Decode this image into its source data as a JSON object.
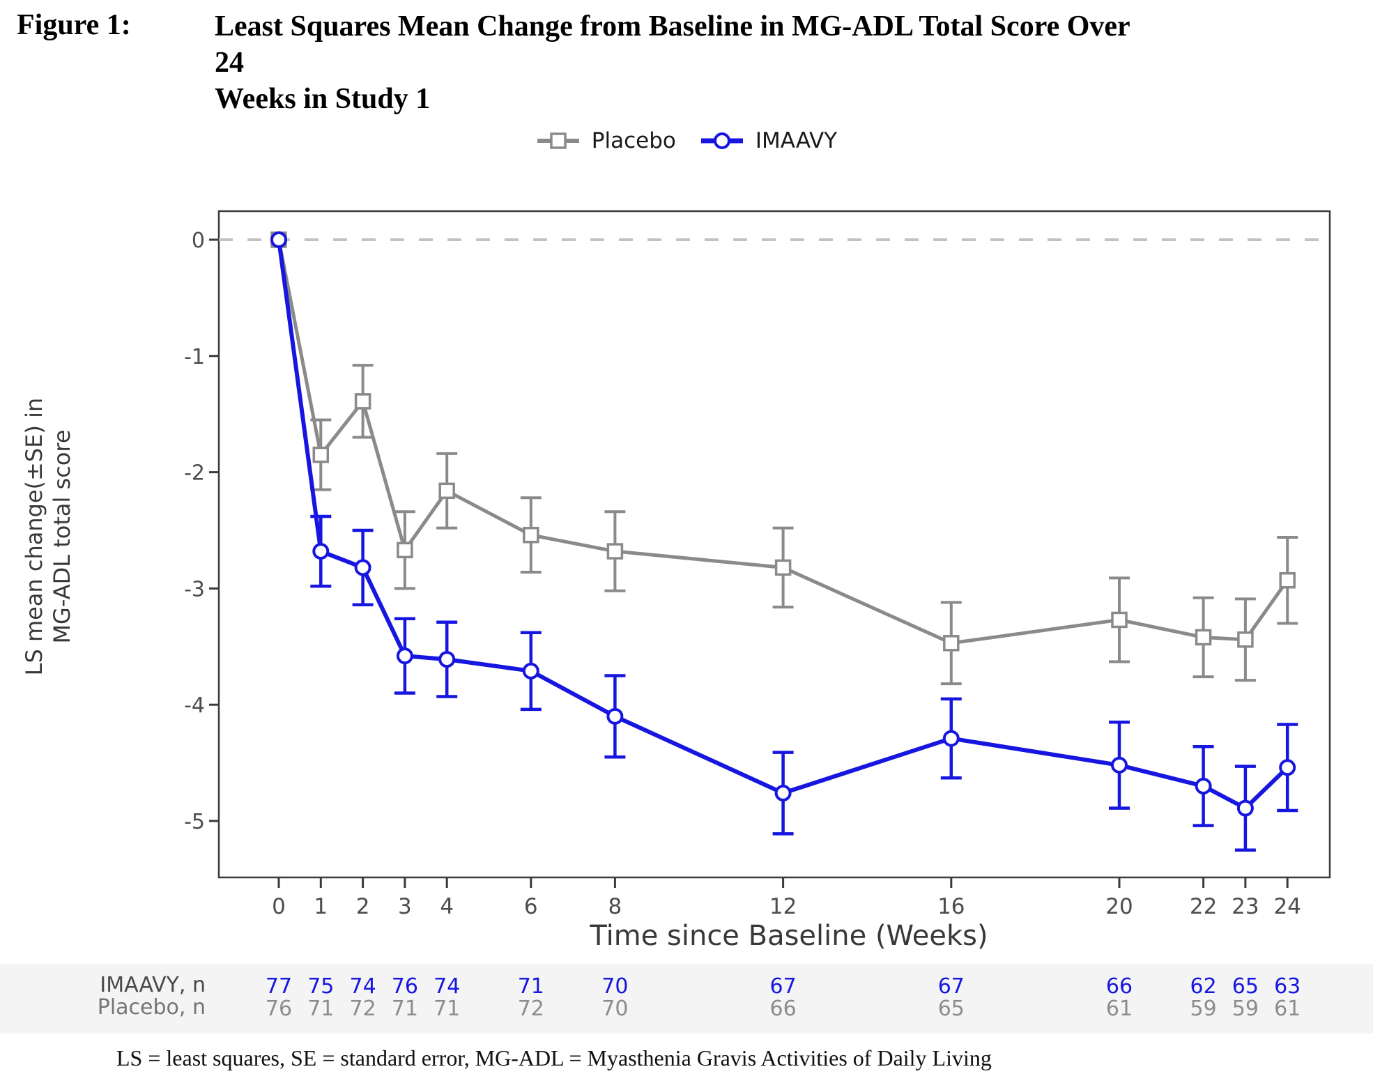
{
  "figure": {
    "label": "Figure 1:",
    "title_line1": "Least Squares Mean Change from Baseline in MG-ADL Total Score Over 24",
    "title_line2": "Weeks in Study 1"
  },
  "legend": {
    "items": [
      {
        "label": "Placebo",
        "marker": "square",
        "color": "#8a8a8a"
      },
      {
        "label": "IMAAVY",
        "marker": "circle",
        "color": "#1616e0"
      }
    ]
  },
  "chart_data": {
    "type": "line",
    "x": [
      0,
      1,
      2,
      3,
      4,
      6,
      8,
      12,
      16,
      20,
      22,
      23,
      24
    ],
    "series": [
      {
        "name": "Placebo",
        "color": "#8a8a8a",
        "marker": "square",
        "values": [
          0,
          -1.85,
          -1.39,
          -2.67,
          -2.16,
          -2.54,
          -2.68,
          -2.82,
          -3.47,
          -3.27,
          -3.42,
          -3.44,
          -2.93
        ],
        "se": [
          0,
          0.3,
          0.31,
          0.33,
          0.32,
          0.32,
          0.34,
          0.34,
          0.35,
          0.36,
          0.34,
          0.35,
          0.37
        ]
      },
      {
        "name": "IMAAVY",
        "color": "#1616e0",
        "marker": "circle",
        "values": [
          0,
          -2.68,
          -2.82,
          -3.58,
          -3.61,
          -3.71,
          -4.1,
          -4.76,
          -4.29,
          -4.52,
          -4.7,
          -4.89,
          -4.54
        ],
        "se": [
          0,
          0.3,
          0.32,
          0.32,
          0.32,
          0.33,
          0.35,
          0.35,
          0.34,
          0.37,
          0.34,
          0.36,
          0.37
        ]
      }
    ],
    "title": "Least Squares Mean Change from Baseline in MG-ADL Total Score Over 24 Weeks in Study 1",
    "xlabel": "Time since Baseline (Weeks)",
    "ylabel_line1": "LS mean change(±SE) in",
    "ylabel_line2": "MG-ADL total score",
    "xticks": [
      0,
      1,
      2,
      3,
      4,
      6,
      8,
      12,
      16,
      20,
      22,
      23,
      24
    ],
    "yticks": [
      0,
      -1,
      -2,
      -3,
      -4,
      -5
    ],
    "xlim": [
      -1.43,
      25.0
    ],
    "ylim": [
      -5.5,
      0.25
    ],
    "grid": false,
    "zero_reference_line": true,
    "legend_position": "top-center"
  },
  "counts_table": {
    "weeks": [
      0,
      1,
      2,
      3,
      4,
      6,
      8,
      12,
      16,
      20,
      22,
      23,
      24
    ],
    "rows": [
      {
        "label": "IMAAVY, n",
        "color": "#1616e0",
        "values": [
          77,
          75,
          74,
          76,
          74,
          71,
          70,
          67,
          67,
          66,
          62,
          65,
          63
        ]
      },
      {
        "label": "Placebo, n",
        "color": "#8c8c8c",
        "values": [
          76,
          71,
          72,
          71,
          71,
          72,
          70,
          66,
          65,
          61,
          59,
          59,
          61
        ]
      }
    ]
  },
  "footnote": "LS = least squares, SE = standard error, MG-ADL = Myasthenia Gravis Activities of Daily Living",
  "colors": {
    "placebo": "#8a8a8a",
    "imaavy": "#1616e0",
    "zero_line": "#c2c2c2",
    "axis": "#3a3a3a",
    "tick_label": "#4d4d4d",
    "axis_title": "#383838",
    "counts_band": "#f4f4f4",
    "legend_text": "#1a1a1a"
  }
}
